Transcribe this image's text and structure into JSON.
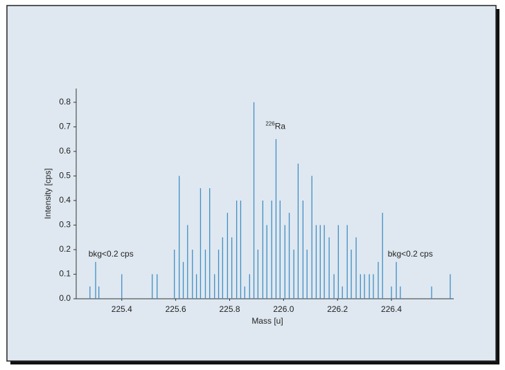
{
  "chart_data": {
    "type": "stem",
    "x_label": "Mass [u]",
    "y_label": "Intensity [cps]",
    "color": "#3f8dc4",
    "x": [
      225.282,
      225.303,
      225.315,
      225.4,
      225.513,
      225.531,
      225.595,
      225.613,
      225.628,
      225.644,
      225.662,
      225.677,
      225.692,
      225.71,
      225.726,
      225.744,
      225.759,
      225.774,
      225.792,
      225.808,
      225.826,
      225.841,
      225.856,
      225.874,
      225.89,
      225.905,
      225.923,
      225.938,
      225.956,
      225.972,
      225.987,
      226.005,
      226.021,
      226.038,
      226.054,
      226.072,
      226.087,
      226.105,
      226.121,
      226.136,
      226.151,
      226.169,
      226.187,
      226.203,
      226.218,
      226.236,
      226.251,
      226.269,
      226.285,
      226.3,
      226.318,
      226.333,
      226.351,
      226.367,
      226.4,
      226.418,
      226.433,
      226.549,
      226.618
    ],
    "values": [
      0.05,
      0.15,
      0.05,
      0.1,
      0.1,
      0.1,
      0.2,
      0.5,
      0.15,
      0.3,
      0.2,
      0.1,
      0.45,
      0.2,
      0.45,
      0.1,
      0.2,
      0.25,
      0.35,
      0.25,
      0.4,
      0.4,
      0.05,
      0.1,
      0.8,
      0.2,
      0.4,
      0.3,
      0.4,
      0.65,
      0.4,
      0.3,
      0.35,
      0.2,
      0.55,
      0.4,
      0.2,
      0.5,
      0.3,
      0.3,
      0.3,
      0.25,
      0.1,
      0.3,
      0.05,
      0.3,
      0.2,
      0.25,
      0.1,
      0.1,
      0.1,
      0.1,
      0.15,
      0.35,
      0.05,
      0.15,
      0.05,
      0.05,
      0.1
    ],
    "xlim": [
      225.231,
      226.631
    ],
    "xticks": [
      225.4,
      225.6,
      225.8,
      {
        "value": 226.0,
        "label": "226.0"
      },
      226.2,
      226.4
    ],
    "ylim": [
      0,
      0.856
    ],
    "yticks": [
      {
        "value": 0,
        "label": "0.0"
      },
      0.1,
      0.2,
      0.3,
      0.4,
      0.5,
      0.6,
      0.7,
      0.8
    ],
    "annotations": [
      {
        "sup": "226",
        "text": "Ra",
        "x": 225.97,
        "y": 0.7
      },
      {
        "text": "bkg<0.2 cps",
        "x": 225.36,
        "y": 0.18
      },
      {
        "text": "bkg<0.2 cps",
        "x": 226.47,
        "y": 0.18
      }
    ]
  }
}
